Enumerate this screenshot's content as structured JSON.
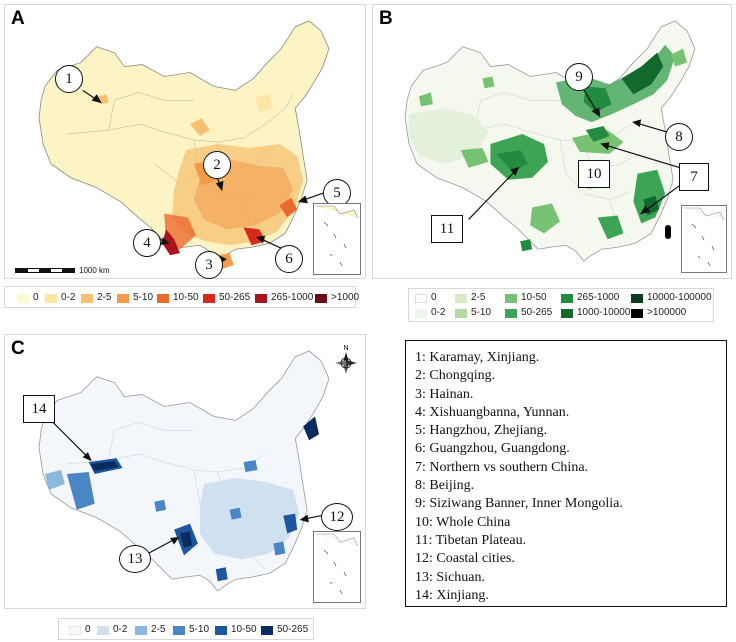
{
  "panels": {
    "A": {
      "letter": "A",
      "callouts": [
        "1",
        "2",
        "3",
        "4",
        "5",
        "6"
      ],
      "scale_label": "1000 km",
      "colors": {
        "base": "#fdf4c5",
        "low": "#f9e29a",
        "mid": "#f3b35c",
        "high": "#e06a2a",
        "higher": "#c4221b",
        "highest": "#6a0d13"
      }
    },
    "B": {
      "letter": "B",
      "callouts": [
        "9",
        "8",
        "7",
        "10",
        "11"
      ],
      "colors": {
        "base": "#f4f8ef",
        "low": "#cde8c2",
        "mid": "#7ec57d",
        "high": "#3da452",
        "higher": "#1d7a36",
        "highest": "#0c4d1f"
      }
    },
    "C": {
      "letter": "C",
      "callouts": [
        "14",
        "12",
        "13"
      ],
      "compass_label": "N",
      "colors": {
        "base": "#f3f6fb",
        "low": "#c8dcef",
        "mid": "#7cacd6",
        "high": "#3b77b8",
        "higher": "#1a4b91",
        "highest": "#0b2a5f"
      }
    }
  },
  "legends": {
    "A": [
      {
        "label": "0",
        "color": "#fff8d6"
      },
      {
        "label": "0-2",
        "color": "#fbe6a6"
      },
      {
        "label": "2-5",
        "color": "#f6c070"
      },
      {
        "label": "5-10",
        "color": "#f29b4b"
      },
      {
        "label": "10-50",
        "color": "#ea6a2e"
      },
      {
        "label": "50-265",
        "color": "#d9281c"
      },
      {
        "label": "265-1000",
        "color": "#a8131d"
      },
      {
        "label": ">1000",
        "color": "#6a0d13"
      }
    ],
    "B": [
      {
        "label": "0",
        "color": "#ffffff"
      },
      {
        "label": "0-2",
        "color": "#eef6e9"
      },
      {
        "label": "2-5",
        "color": "#d6ecc8"
      },
      {
        "label": "5-10",
        "color": "#b2dc9f"
      },
      {
        "label": "10-50",
        "color": "#78c274"
      },
      {
        "label": "50-265",
        "color": "#3ea455"
      },
      {
        "label": "265-1000",
        "color": "#238b40"
      },
      {
        "label": "1000-10000",
        "color": "#11692d"
      },
      {
        "label": "10000-100000",
        "color": "#0c3e1c"
      },
      {
        "label": ">100000",
        "color": "#000000"
      }
    ],
    "C": [
      {
        "label": "0",
        "color": "#f7f9fd"
      },
      {
        "label": "0-2",
        "color": "#cfe0f1"
      },
      {
        "label": "2-5",
        "color": "#8db8de"
      },
      {
        "label": "5-10",
        "color": "#4a86c4"
      },
      {
        "label": "10-50",
        "color": "#1d559e"
      },
      {
        "label": "50-265",
        "color": "#0b2a5f"
      }
    ]
  },
  "key": [
    "1: Karamay, Xinjiang.",
    "2: Chongqing.",
    "3: Hainan.",
    "4: Xishuangbanna, Yunnan.",
    "5: Hangzhou, Zhejiang.",
    "6: Guangzhou, Guangdong.",
    "7: Northern vs southern China.",
    "8: Beijing.",
    "9: Siziwang Banner, Inner Mongolia.",
    "10: Whole China",
    "11: Tibetan Plateau.",
    "12: Coastal cities.",
    "13: Sichuan.",
    "14: Xinjiang."
  ]
}
